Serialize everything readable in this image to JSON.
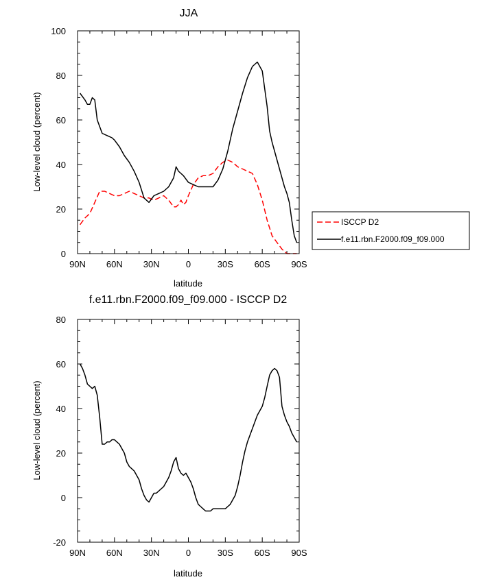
{
  "chart_data": [
    {
      "type": "line",
      "title": "JJA",
      "xlabel": "latitude",
      "ylabel": "Low-level cloud (percent)",
      "xlim": [
        -90,
        90
      ],
      "ylim": [
        0,
        100
      ],
      "xticks": [
        -90,
        -60,
        -30,
        0,
        30,
        60,
        90
      ],
      "xticklabels": [
        "90N",
        "60N",
        "30N",
        "0",
        "30S",
        "60S",
        "90S"
      ],
      "yticks": [
        0,
        20,
        40,
        60,
        80,
        100
      ],
      "yticklabels": [
        "0",
        "20",
        "40",
        "60",
        "80",
        "100"
      ],
      "legend_position": "right",
      "series": [
        {
          "name": "ISCCP D2",
          "color": "#ff0000",
          "dash": "dashed",
          "x": [
            -88,
            -84,
            -80,
            -76,
            -72,
            -68,
            -64,
            -60,
            -56,
            -52,
            -48,
            -44,
            -40,
            -36,
            -32,
            -28,
            -24,
            -20,
            -16,
            -12,
            -10,
            -8,
            -6,
            -4,
            -2,
            0,
            4,
            8,
            12,
            16,
            20,
            24,
            28,
            32,
            36,
            40,
            44,
            48,
            52,
            56,
            60,
            64,
            68,
            72,
            76,
            80,
            84,
            88
          ],
          "y": [
            13,
            16,
            18,
            23,
            28,
            28,
            27,
            26,
            26,
            27,
            28,
            27,
            26,
            25,
            25,
            24,
            25,
            26,
            24,
            21,
            21,
            22,
            24,
            22,
            23,
            26,
            31,
            34,
            35,
            35,
            36,
            39,
            41,
            42,
            41,
            39,
            38,
            37,
            36,
            31,
            24,
            15,
            8,
            5,
            2,
            0,
            0,
            0
          ]
        },
        {
          "name": "f.e11.rbn.F2000.f09_f09.000",
          "color": "#000000",
          "dash": "solid",
          "x": [
            -88,
            -84,
            -82,
            -80,
            -78,
            -76,
            -74,
            -70,
            -66,
            -62,
            -60,
            -56,
            -52,
            -48,
            -44,
            -40,
            -36,
            -32,
            -28,
            -24,
            -20,
            -16,
            -12,
            -10,
            -8,
            -6,
            -4,
            0,
            4,
            8,
            12,
            16,
            20,
            24,
            28,
            32,
            36,
            40,
            44,
            48,
            52,
            56,
            60,
            64,
            66,
            68,
            70,
            72,
            74,
            76,
            78,
            80,
            82,
            84,
            86,
            88
          ],
          "y": [
            72,
            69,
            67,
            67,
            70,
            69,
            60,
            54,
            53,
            52,
            51,
            48,
            44,
            41,
            37,
            32,
            25,
            23,
            26,
            27,
            28,
            30,
            34,
            39,
            37,
            36,
            35,
            32,
            31,
            30,
            30,
            30,
            30,
            33,
            38,
            46,
            56,
            64,
            72,
            79,
            84,
            86,
            82,
            66,
            55,
            50,
            46,
            42,
            38,
            34,
            30,
            27,
            23,
            15,
            8,
            5
          ]
        }
      ]
    },
    {
      "type": "line",
      "title": "f.e11.rbn.F2000.f09_f09.000 - ISCCP D2",
      "xlabel": "latitude",
      "ylabel": "Low-level cloud (percent)",
      "xlim": [
        -90,
        90
      ],
      "ylim": [
        -20,
        80
      ],
      "xticks": [
        -90,
        -60,
        -30,
        0,
        30,
        60,
        90
      ],
      "xticklabels": [
        "90N",
        "60N",
        "30N",
        "0",
        "30S",
        "60S",
        "90S"
      ],
      "yticks": [
        -20,
        0,
        20,
        40,
        60,
        80
      ],
      "yticklabels": [
        "-20",
        "0",
        "20",
        "40",
        "60",
        "80"
      ],
      "series": [
        {
          "color": "#000000",
          "dash": "solid",
          "x": [
            -88,
            -86,
            -84,
            -82,
            -80,
            -78,
            -76,
            -74,
            -72,
            -70,
            -68,
            -66,
            -64,
            -62,
            -60,
            -58,
            -56,
            -54,
            -52,
            -50,
            -48,
            -46,
            -44,
            -42,
            -40,
            -38,
            -36,
            -34,
            -32,
            -30,
            -28,
            -26,
            -24,
            -22,
            -20,
            -18,
            -16,
            -14,
            -12,
            -10,
            -8,
            -6,
            -4,
            -2,
            0,
            2,
            4,
            6,
            8,
            10,
            12,
            14,
            16,
            18,
            20,
            22,
            24,
            26,
            28,
            30,
            32,
            34,
            36,
            38,
            40,
            42,
            44,
            46,
            48,
            50,
            52,
            54,
            56,
            58,
            60,
            62,
            64,
            66,
            68,
            70,
            72,
            74,
            76,
            78,
            80,
            82,
            84,
            86,
            88
          ],
          "y": [
            60,
            58,
            55,
            51,
            50,
            49,
            50,
            46,
            36,
            24,
            24,
            25,
            25,
            26,
            26,
            25,
            24,
            22,
            20,
            16,
            14,
            13,
            12,
            10,
            8,
            4,
            1,
            -1,
            -2,
            0,
            2,
            2,
            3,
            4,
            5,
            7,
            9,
            12,
            16,
            18,
            13,
            11,
            10,
            11,
            9,
            7,
            4,
            0,
            -3,
            -4,
            -5,
            -6,
            -6,
            -6,
            -5,
            -5,
            -5,
            -5,
            -5,
            -5,
            -4,
            -3,
            -1,
            1,
            5,
            10,
            16,
            21,
            25,
            28,
            31,
            34,
            37,
            39,
            41,
            45,
            50,
            55,
            57,
            58,
            57,
            54,
            41,
            37,
            34,
            32,
            29,
            27,
            25
          ]
        }
      ]
    }
  ]
}
